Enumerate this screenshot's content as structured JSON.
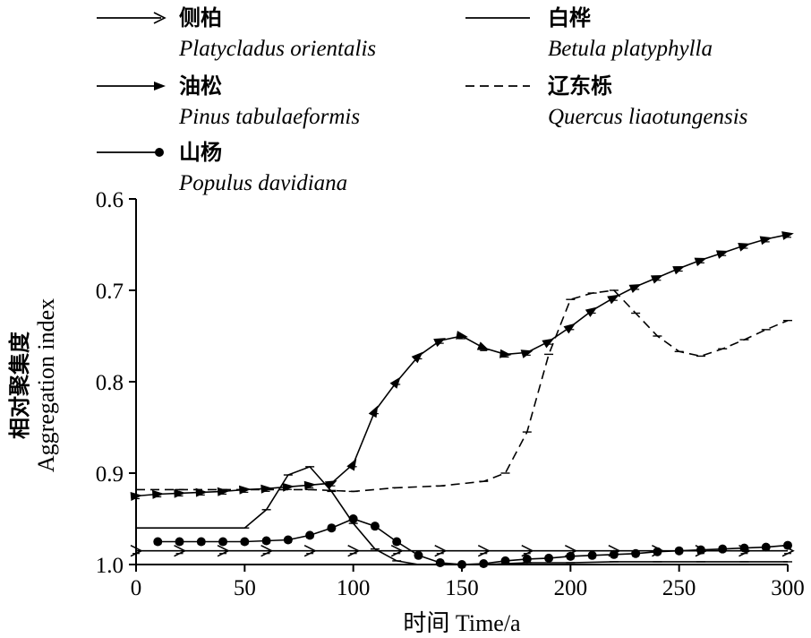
{
  "chart_data": {
    "type": "line",
    "xlabel": "时间 Time/a",
    "ylabel_cn": "相对聚集度",
    "ylabel_en": "Aggregation index",
    "xlim": [
      0,
      300
    ],
    "ylim": [
      0.6,
      1.0
    ],
    "y_inverted": true,
    "grid": false,
    "legend_position": "top",
    "x_ticks": [
      "0",
      "50",
      "100",
      "150",
      "200",
      "250",
      "300"
    ],
    "y_ticks": [
      "0.6",
      "0.7",
      "0.8",
      "0.9",
      "1.0"
    ],
    "series": [
      {
        "name_cn": "侧柏",
        "name_en": "Platycladus orientalis",
        "marker": "open-arrow",
        "dash": "",
        "x": [
          0,
          20,
          40,
          60,
          80,
          100,
          120,
          140,
          160,
          180,
          200,
          220,
          240,
          260,
          280,
          300
        ],
        "y": [
          0.985,
          0.985,
          0.985,
          0.985,
          0.985,
          0.985,
          0.985,
          0.985,
          0.985,
          0.985,
          0.985,
          0.985,
          0.985,
          0.985,
          0.985,
          0.985
        ]
      },
      {
        "name_cn": "油松",
        "name_en": "Pinus tabulaeformis",
        "marker": "filled-arrow",
        "dash": "",
        "x": [
          0,
          10,
          20,
          30,
          40,
          50,
          60,
          70,
          80,
          90,
          100,
          110,
          120,
          130,
          140,
          150,
          160,
          170,
          180,
          190,
          200,
          210,
          220,
          230,
          240,
          250,
          260,
          270,
          280,
          290,
          300
        ],
        "y": [
          0.925,
          0.923,
          0.922,
          0.921,
          0.92,
          0.918,
          0.917,
          0.915,
          0.913,
          0.911,
          0.89,
          0.832,
          0.8,
          0.772,
          0.755,
          0.75,
          0.763,
          0.77,
          0.768,
          0.756,
          0.74,
          0.722,
          0.708,
          0.696,
          0.686,
          0.676,
          0.667,
          0.659,
          0.651,
          0.644,
          0.639
        ]
      },
      {
        "name_cn": "山杨",
        "name_en": "Populus davidiana",
        "marker": "filled-circle",
        "dash": "",
        "x": [
          10,
          20,
          30,
          40,
          50,
          60,
          70,
          80,
          90,
          100,
          110,
          120,
          130,
          140,
          150,
          160,
          170,
          180,
          190,
          200,
          210,
          220,
          230,
          240,
          250,
          260,
          270,
          280,
          290,
          300
        ],
        "y": [
          0.975,
          0.975,
          0.975,
          0.975,
          0.975,
          0.974,
          0.973,
          0.968,
          0.96,
          0.95,
          0.958,
          0.975,
          0.99,
          0.998,
          1.0,
          0.999,
          0.996,
          0.994,
          0.993,
          0.991,
          0.99,
          0.989,
          0.988,
          0.986,
          0.985,
          0.984,
          0.983,
          0.982,
          0.981,
          0.979
        ]
      },
      {
        "name_cn": "白桦",
        "name_en": "Betula platyphylla",
        "marker": "none",
        "dash": "",
        "x": [
          0,
          50,
          60,
          70,
          80,
          90,
          100,
          110,
          120,
          130,
          140,
          160,
          180,
          200,
          220,
          240,
          260,
          280,
          300
        ],
        "y": [
          0.96,
          0.96,
          0.94,
          0.902,
          0.893,
          0.92,
          0.955,
          0.983,
          0.996,
          1.0,
          1.0,
          1.0,
          0.998,
          0.998,
          0.997,
          0.997,
          0.997,
          0.997,
          0.997
        ]
      },
      {
        "name_cn": "辽东栎",
        "name_en": "Quercus liaotungensis",
        "marker": "none",
        "dash": "10,6",
        "x": [
          0,
          20,
          40,
          60,
          80,
          90,
          100,
          120,
          140,
          160,
          170,
          180,
          190,
          200,
          210,
          220,
          230,
          240,
          250,
          260,
          270,
          280,
          290,
          300
        ],
        "y": [
          0.918,
          0.918,
          0.918,
          0.918,
          0.918,
          0.919,
          0.92,
          0.916,
          0.914,
          0.909,
          0.9,
          0.855,
          0.77,
          0.71,
          0.703,
          0.7,
          0.725,
          0.75,
          0.767,
          0.772,
          0.764,
          0.754,
          0.743,
          0.733
        ]
      }
    ]
  }
}
